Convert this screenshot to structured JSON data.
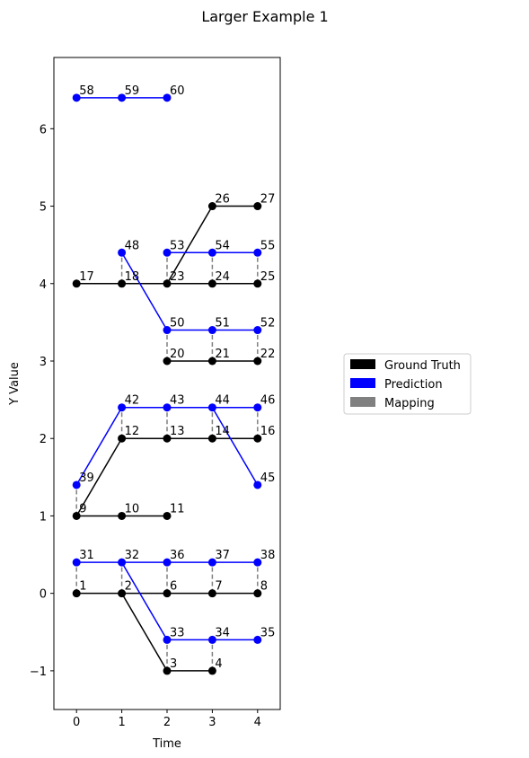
{
  "chart_data": {
    "type": "graph",
    "title": "Larger Example 1",
    "xlabel": "Time",
    "ylabel": "Y Value",
    "xlim": [
      -0.5,
      4.5
    ],
    "xticks": [
      0,
      1,
      2,
      3,
      4
    ],
    "ylim": [
      -1.5,
      6.92
    ],
    "yticks": [
      {
        "value": -1,
        "label": "−1"
      },
      0,
      1,
      2,
      3,
      4,
      5,
      6
    ],
    "legend": "right",
    "series": [
      {
        "name": "Ground Truth",
        "color": "#000000",
        "points": {
          "labels": [
            "1",
            "2",
            "6",
            "7",
            "8",
            "3",
            "4",
            "9",
            "10",
            "11",
            "12",
            "13",
            "14",
            "16",
            "20",
            "21",
            "22",
            "17",
            "18",
            "23",
            "24",
            "25",
            "26",
            "27"
          ],
          "x": [
            0,
            1,
            2,
            3,
            4,
            2,
            3,
            0,
            1,
            2,
            1,
            2,
            3,
            4,
            2,
            3,
            4,
            0,
            1,
            2,
            3,
            4,
            3,
            4
          ],
          "y": [
            0,
            0,
            0,
            0,
            0,
            -1,
            -1,
            1,
            1,
            1,
            2,
            2,
            2,
            2,
            3,
            3,
            3,
            4,
            4,
            4,
            4,
            4,
            5,
            5
          ]
        },
        "lines": [
          {
            "x": [
              0,
              1,
              2,
              3,
              4
            ],
            "y": [
              0,
              0,
              0,
              0,
              0
            ]
          },
          {
            "x": [
              1,
              2,
              3
            ],
            "y": [
              0,
              -1,
              -1
            ]
          },
          {
            "x": [
              0,
              1,
              2
            ],
            "y": [
              1,
              1,
              1
            ]
          },
          {
            "x": [
              0,
              1,
              2,
              3,
              4
            ],
            "y": [
              1,
              2,
              2,
              2,
              2
            ]
          },
          {
            "x": [
              2,
              3,
              4
            ],
            "y": [
              3,
              3,
              3
            ]
          },
          {
            "x": [
              0,
              1,
              2,
              3,
              4
            ],
            "y": [
              4,
              4,
              4,
              4,
              4
            ]
          },
          {
            "x": [
              2,
              3,
              4
            ],
            "y": [
              4,
              5,
              5
            ]
          }
        ]
      },
      {
        "name": "Prediction",
        "color": "#0000ff",
        "points": {
          "labels": [
            "31",
            "32",
            "36",
            "37",
            "38",
            "33",
            "34",
            "35",
            "39",
            "42",
            "43",
            "44",
            "46",
            "45",
            "48",
            "53",
            "54",
            "55",
            "50",
            "51",
            "52",
            "58",
            "59",
            "60"
          ],
          "x": [
            0,
            1,
            2,
            3,
            4,
            2,
            3,
            4,
            0,
            1,
            2,
            3,
            4,
            4,
            1,
            2,
            3,
            4,
            2,
            3,
            4,
            0,
            1,
            2
          ],
          "y": [
            0.4,
            0.4,
            0.4,
            0.4,
            0.4,
            -0.6,
            -0.6,
            -0.6,
            1.4,
            2.4,
            2.4,
            2.4,
            2.4,
            1.4,
            4.4,
            4.4,
            4.4,
            4.4,
            3.4,
            3.4,
            3.4,
            6.4,
            6.4,
            6.4
          ]
        },
        "lines": [
          {
            "x": [
              0,
              1,
              2,
              3,
              4
            ],
            "y": [
              0.4,
              0.4,
              0.4,
              0.4,
              0.4
            ]
          },
          {
            "x": [
              1,
              2,
              3,
              4
            ],
            "y": [
              0.4,
              -0.6,
              -0.6,
              -0.6
            ]
          },
          {
            "x": [
              0,
              1,
              2,
              3,
              4
            ],
            "y": [
              1.4,
              2.4,
              2.4,
              2.4,
              2.4
            ]
          },
          {
            "x": [
              3,
              4
            ],
            "y": [
              2.4,
              1.4
            ]
          },
          {
            "x": [
              1,
              2,
              3,
              4
            ],
            "y": [
              4.4,
              3.4,
              3.4,
              3.4
            ]
          },
          {
            "x": [
              2,
              3,
              4
            ],
            "y": [
              4.4,
              4.4,
              4.4
            ]
          },
          {
            "x": [
              0,
              1,
              2
            ],
            "y": [
              6.4,
              6.4,
              6.4
            ]
          }
        ]
      },
      {
        "name": "Mapping",
        "color": "#808080",
        "dashed": true,
        "lines": [
          {
            "x": [
              0,
              0
            ],
            "y": [
              0,
              0.4
            ]
          },
          {
            "x": [
              1,
              1
            ],
            "y": [
              0,
              0.4
            ]
          },
          {
            "x": [
              2,
              2
            ],
            "y": [
              0,
              0.4
            ]
          },
          {
            "x": [
              3,
              3
            ],
            "y": [
              0,
              0.4
            ]
          },
          {
            "x": [
              4,
              4
            ],
            "y": [
              0,
              0.4
            ]
          },
          {
            "x": [
              2,
              2
            ],
            "y": [
              -1,
              -0.6
            ]
          },
          {
            "x": [
              3,
              3
            ],
            "y": [
              -1,
              -0.6
            ]
          },
          {
            "x": [
              0,
              0
            ],
            "y": [
              1,
              1.4
            ]
          },
          {
            "x": [
              1,
              1
            ],
            "y": [
              2,
              2.4
            ]
          },
          {
            "x": [
              2,
              2
            ],
            "y": [
              2,
              2.4
            ]
          },
          {
            "x": [
              3,
              3
            ],
            "y": [
              2,
              2.4
            ]
          },
          {
            "x": [
              4,
              4
            ],
            "y": [
              2,
              2.4
            ]
          },
          {
            "x": [
              2,
              2
            ],
            "y": [
              3,
              3.4
            ]
          },
          {
            "x": [
              3,
              3
            ],
            "y": [
              3,
              3.4
            ]
          },
          {
            "x": [
              4,
              4
            ],
            "y": [
              3,
              3.4
            ]
          },
          {
            "x": [
              1,
              1
            ],
            "y": [
              4,
              4.4
            ]
          },
          {
            "x": [
              2,
              2
            ],
            "y": [
              4,
              4.4
            ]
          },
          {
            "x": [
              3,
              3
            ],
            "y": [
              4,
              4.4
            ]
          },
          {
            "x": [
              4,
              4
            ],
            "y": [
              4,
              4.4
            ]
          }
        ]
      }
    ]
  }
}
